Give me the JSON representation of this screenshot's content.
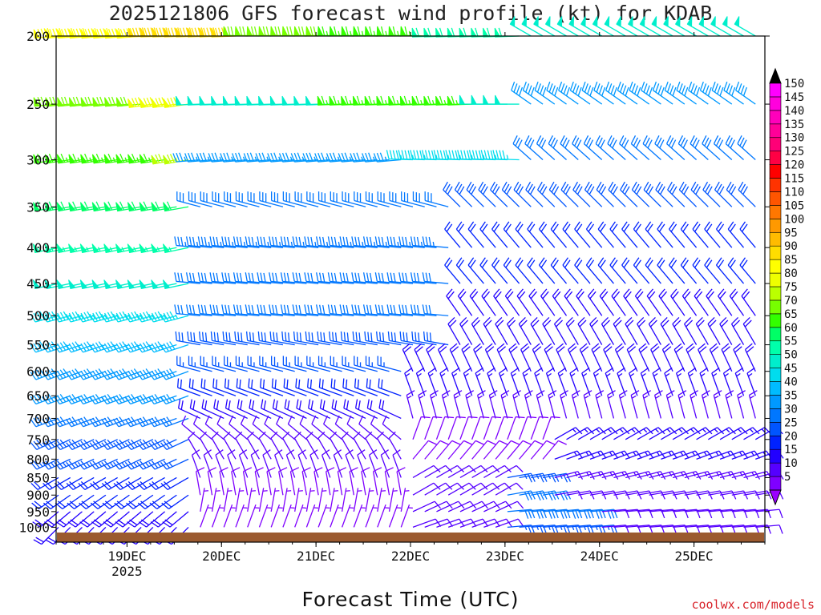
{
  "chart_data": {
    "type": "wind-barb-time-height",
    "title": "2025121806 GFS forecast wind profile (kt) for KDAB",
    "xlabel": "Forecast Time (UTC)",
    "ylabel": "",
    "units": "kt",
    "y_axis": {
      "scale": "log-pressure",
      "range": [
        1050,
        200
      ],
      "ticks": [
        200,
        250,
        300,
        350,
        400,
        450,
        500,
        550,
        600,
        650,
        700,
        750,
        800,
        850,
        900,
        950,
        1000
      ]
    },
    "x_axis": {
      "range": [
        "2025-12-18T06",
        "2025-12-25T18"
      ],
      "ticks": [
        {
          "time": "2025-12-19T00",
          "label": "19DEC",
          "sublabel": "2025"
        },
        {
          "time": "2025-12-20T00",
          "label": "20DEC",
          "sublabel": ""
        },
        {
          "time": "2025-12-21T00",
          "label": "21DEC",
          "sublabel": ""
        },
        {
          "time": "2025-12-22T00",
          "label": "22DEC",
          "sublabel": ""
        },
        {
          "time": "2025-12-23T00",
          "label": "23DEC",
          "sublabel": ""
        },
        {
          "time": "2025-12-24T00",
          "label": "24DEC",
          "sublabel": ""
        },
        {
          "time": "2025-12-25T00",
          "label": "25DEC",
          "sublabel": ""
        }
      ]
    },
    "colorbar": {
      "levels": [
        5,
        10,
        15,
        20,
        25,
        30,
        35,
        40,
        45,
        50,
        55,
        60,
        65,
        70,
        75,
        80,
        85,
        90,
        95,
        100,
        105,
        110,
        115,
        120,
        125,
        130,
        135,
        140,
        145,
        150
      ],
      "colors": [
        "#7f00ff",
        "#5500ff",
        "#2200ff",
        "#0022ff",
        "#0055ff",
        "#0077ff",
        "#0099ff",
        "#00bbff",
        "#00ddee",
        "#00eecc",
        "#00ffaa",
        "#00ff66",
        "#33ff00",
        "#77ff00",
        "#bbff00",
        "#eeff00",
        "#ffff00",
        "#ffdd00",
        "#ffbb00",
        "#ff9900",
        "#ff7700",
        "#ff5500",
        "#ff3300",
        "#ff0000",
        "#ff0044",
        "#ff0077",
        "#ff0099",
        "#ff00bb",
        "#ff00dd",
        "#ff00ff"
      ],
      "top_triangle": "#000000",
      "bottom_triangle": "#9a00ff"
    },
    "ground_color": "#9b5a30",
    "barb_spacing_hours": 3,
    "series": [
      {
        "level": 200,
        "points": [
          {
            "start": "2025-12-18T06",
            "end": "2025-12-19T06",
            "speed": 88,
            "dir": 265
          },
          {
            "start": "2025-12-19T06",
            "end": "2025-12-20T06",
            "speed": 92,
            "dir": 268
          },
          {
            "start": "2025-12-20T06",
            "end": "2025-12-21T06",
            "speed": 72,
            "dir": 272
          },
          {
            "start": "2025-12-21T06",
            "end": "2025-12-22T06",
            "speed": 66,
            "dir": 272
          },
          {
            "start": "2025-12-22T06",
            "end": "2025-12-23T06",
            "speed": 58,
            "dir": 268
          },
          {
            "start": "2025-12-23T06",
            "end": "2025-12-25T18",
            "speed": 50,
            "dir": 300
          }
        ]
      },
      {
        "level": 250,
        "points": [
          {
            "start": "2025-12-18T06",
            "end": "2025-12-19T06",
            "speed": 72,
            "dir": 265
          },
          {
            "start": "2025-12-19T06",
            "end": "2025-12-19T18",
            "speed": 82,
            "dir": 262
          },
          {
            "start": "2025-12-19T18",
            "end": "2025-12-21T06",
            "speed": 50,
            "dir": 268
          },
          {
            "start": "2025-12-21T06",
            "end": "2025-12-22T18",
            "speed": 65,
            "dir": 268
          },
          {
            "start": "2025-12-22T18",
            "end": "2025-12-23T06",
            "speed": 52,
            "dir": 270
          },
          {
            "start": "2025-12-23T06",
            "end": "2025-12-25T18",
            "speed": 38,
            "dir": 305
          }
        ]
      },
      {
        "level": 300,
        "points": [
          {
            "start": "2025-12-18T06",
            "end": "2025-12-19T12",
            "speed": 65,
            "dir": 262
          },
          {
            "start": "2025-12-19T12",
            "end": "2025-12-19T18",
            "speed": 75,
            "dir": 260
          },
          {
            "start": "2025-12-19T18",
            "end": "2025-12-22T00",
            "speed": 35,
            "dir": 265
          },
          {
            "start": "2025-12-22T00",
            "end": "2025-12-23T06",
            "speed": 45,
            "dir": 272
          },
          {
            "start": "2025-12-23T06",
            "end": "2025-12-25T18",
            "speed": 32,
            "dir": 312
          }
        ]
      },
      {
        "level": 350,
        "points": [
          {
            "start": "2025-12-18T06",
            "end": "2025-12-19T18",
            "speed": 60,
            "dir": 260
          },
          {
            "start": "2025-12-19T18",
            "end": "2025-12-22T12",
            "speed": 32,
            "dir": 285
          },
          {
            "start": "2025-12-22T12",
            "end": "2025-12-25T18",
            "speed": 28,
            "dir": 315
          }
        ]
      },
      {
        "level": 400,
        "points": [
          {
            "start": "2025-12-18T06",
            "end": "2025-12-19T18",
            "speed": 55,
            "dir": 258
          },
          {
            "start": "2025-12-19T18",
            "end": "2025-12-22T12",
            "speed": 33,
            "dir": 275
          },
          {
            "start": "2025-12-22T12",
            "end": "2025-12-25T18",
            "speed": 22,
            "dir": 320
          }
        ]
      },
      {
        "level": 450,
        "points": [
          {
            "start": "2025-12-18T06",
            "end": "2025-12-19T18",
            "speed": 50,
            "dir": 258
          },
          {
            "start": "2025-12-19T18",
            "end": "2025-12-22T12",
            "speed": 30,
            "dir": 275
          },
          {
            "start": "2025-12-22T12",
            "end": "2025-12-25T18",
            "speed": 20,
            "dir": 320
          }
        ]
      },
      {
        "level": 500,
        "points": [
          {
            "start": "2025-12-18T06",
            "end": "2025-12-19T18",
            "speed": 45,
            "dir": 255
          },
          {
            "start": "2025-12-19T18",
            "end": "2025-12-22T12",
            "speed": 30,
            "dir": 275
          },
          {
            "start": "2025-12-22T12",
            "end": "2025-12-25T18",
            "speed": 18,
            "dir": 325
          }
        ]
      },
      {
        "level": 550,
        "points": [
          {
            "start": "2025-12-18T06",
            "end": "2025-12-19T18",
            "speed": 42,
            "dir": 252
          },
          {
            "start": "2025-12-19T18",
            "end": "2025-12-22T12",
            "speed": 28,
            "dir": 280
          },
          {
            "start": "2025-12-22T12",
            "end": "2025-12-25T18",
            "speed": 18,
            "dir": 330
          }
        ]
      },
      {
        "level": 600,
        "points": [
          {
            "start": "2025-12-18T06",
            "end": "2025-12-19T18",
            "speed": 38,
            "dir": 250
          },
          {
            "start": "2025-12-19T18",
            "end": "2025-12-22T00",
            "speed": 25,
            "dir": 285
          },
          {
            "start": "2025-12-22T00",
            "end": "2025-12-25T18",
            "speed": 18,
            "dir": 335
          }
        ]
      },
      {
        "level": 650,
        "points": [
          {
            "start": "2025-12-18T06",
            "end": "2025-12-19T18",
            "speed": 35,
            "dir": 250
          },
          {
            "start": "2025-12-19T18",
            "end": "2025-12-22T00",
            "speed": 22,
            "dir": 290
          },
          {
            "start": "2025-12-22T00",
            "end": "2025-12-25T18",
            "speed": 17,
            "dir": 340
          }
        ]
      },
      {
        "level": 700,
        "points": [
          {
            "start": "2025-12-18T06",
            "end": "2025-12-19T18",
            "speed": 32,
            "dir": 250
          },
          {
            "start": "2025-12-19T18",
            "end": "2025-12-22T00",
            "speed": 18,
            "dir": 295
          },
          {
            "start": "2025-12-22T00",
            "end": "2025-12-25T18",
            "speed": 14,
            "dir": 345
          }
        ]
      },
      {
        "level": 750,
        "points": [
          {
            "start": "2025-12-18T06",
            "end": "2025-12-19T18",
            "speed": 28,
            "dir": 245
          },
          {
            "start": "2025-12-19T18",
            "end": "2025-12-22T00",
            "speed": 12,
            "dir": 310
          },
          {
            "start": "2025-12-22T00",
            "end": "2025-12-23T12",
            "speed": 8,
            "dir": 20
          },
          {
            "start": "2025-12-23T12",
            "end": "2025-12-25T18",
            "speed": 17,
            "dir": 60
          }
        ]
      },
      {
        "level": 800,
        "points": [
          {
            "start": "2025-12-18T06",
            "end": "2025-12-19T18",
            "speed": 25,
            "dir": 245
          },
          {
            "start": "2025-12-19T18",
            "end": "2025-12-22T00",
            "speed": 10,
            "dir": 330
          },
          {
            "start": "2025-12-22T00",
            "end": "2025-12-23T12",
            "speed": 8,
            "dir": 40
          },
          {
            "start": "2025-12-23T12",
            "end": "2025-12-25T18",
            "speed": 15,
            "dir": 70
          }
        ]
      },
      {
        "level": 850,
        "points": [
          {
            "start": "2025-12-18T06",
            "end": "2025-12-19T18",
            "speed": 22,
            "dir": 240
          },
          {
            "start": "2025-12-19T18",
            "end": "2025-12-22T00",
            "speed": 10,
            "dir": 340
          },
          {
            "start": "2025-12-22T00",
            "end": "2025-12-23T00",
            "speed": 10,
            "dir": 60
          },
          {
            "start": "2025-12-23T00",
            "end": "2025-12-23T12",
            "speed": 25,
            "dir": 80
          },
          {
            "start": "2025-12-23T12",
            "end": "2025-12-25T18",
            "speed": 14,
            "dir": 75
          }
        ]
      },
      {
        "level": 900,
        "points": [
          {
            "start": "2025-12-18T06",
            "end": "2025-12-19T18",
            "speed": 20,
            "dir": 235
          },
          {
            "start": "2025-12-19T18",
            "end": "2025-12-22T00",
            "speed": 8,
            "dir": 350
          },
          {
            "start": "2025-12-22T00",
            "end": "2025-12-23T00",
            "speed": 12,
            "dir": 60
          },
          {
            "start": "2025-12-23T00",
            "end": "2025-12-23T12",
            "speed": 30,
            "dir": 80
          },
          {
            "start": "2025-12-23T12",
            "end": "2025-12-25T18",
            "speed": 12,
            "dir": 80
          }
        ]
      },
      {
        "level": 950,
        "points": [
          {
            "start": "2025-12-18T06",
            "end": "2025-12-19T18",
            "speed": 18,
            "dir": 230
          },
          {
            "start": "2025-12-19T18",
            "end": "2025-12-22T00",
            "speed": 7,
            "dir": 10
          },
          {
            "start": "2025-12-22T00",
            "end": "2025-12-23T00",
            "speed": 12,
            "dir": 65
          },
          {
            "start": "2025-12-23T00",
            "end": "2025-12-24T00",
            "speed": 30,
            "dir": 85
          },
          {
            "start": "2025-12-24T00",
            "end": "2025-12-25T18",
            "speed": 12,
            "dir": 85
          }
        ]
      },
      {
        "level": 1000,
        "points": [
          {
            "start": "2025-12-18T06",
            "end": "2025-12-19T18",
            "speed": 18,
            "dir": 225
          },
          {
            "start": "2025-12-19T18",
            "end": "2025-12-22T00",
            "speed": 6,
            "dir": 20
          },
          {
            "start": "2025-12-22T00",
            "end": "2025-12-23T00",
            "speed": 10,
            "dir": 70
          },
          {
            "start": "2025-12-23T00",
            "end": "2025-12-24T00",
            "speed": 25,
            "dir": 85
          },
          {
            "start": "2025-12-24T00",
            "end": "2025-12-25T18",
            "speed": 12,
            "dir": 85
          }
        ]
      }
    ]
  },
  "credit": "coolwx.com/models"
}
